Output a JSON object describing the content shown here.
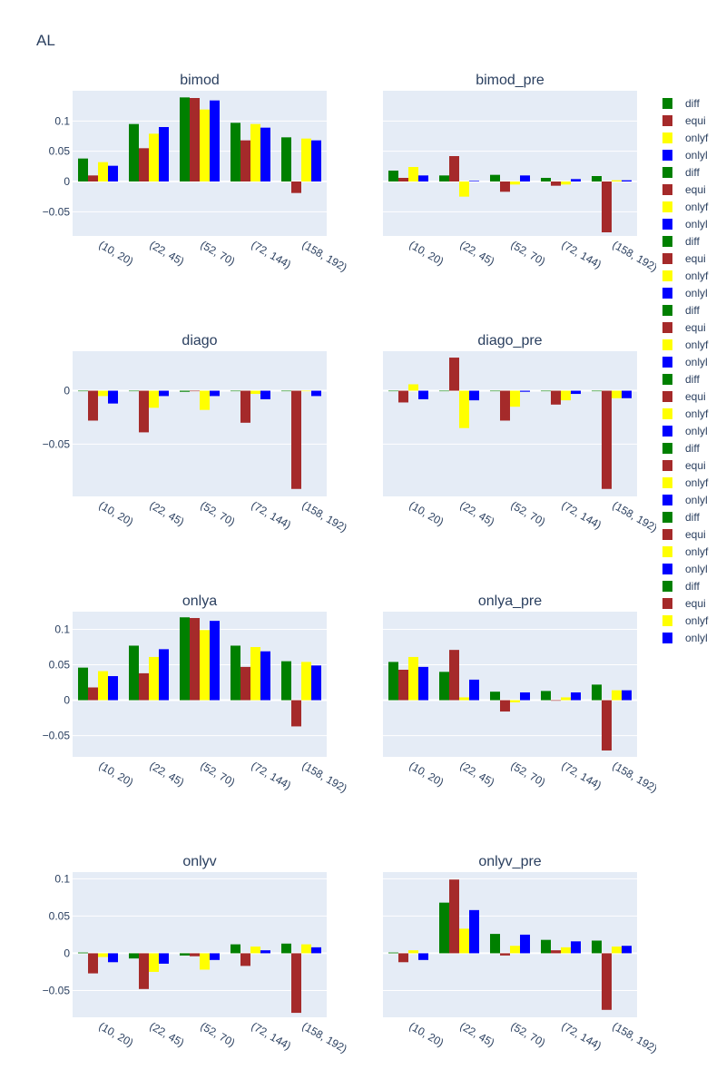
{
  "page": {
    "title": "AL"
  },
  "chart_data": {
    "type": "bar",
    "categories": [
      "(10, 20)",
      "(22, 45)",
      "(52, 70)",
      "(72, 144)",
      "(158, 192)"
    ],
    "colors": {
      "diff": "#008000",
      "equi": "#a52a2a",
      "onlyf": "#ffff00",
      "onlyl": "#0000ff"
    },
    "legend": {
      "position": "right",
      "entries": [
        {
          "label": "diff",
          "series": "diff"
        },
        {
          "label": "equi",
          "series": "equi"
        },
        {
          "label": "onlyf",
          "series": "onlyf"
        },
        {
          "label": "onlyl",
          "series": "onlyl"
        },
        {
          "label": "diff",
          "series": "diff"
        },
        {
          "label": "equi",
          "series": "equi"
        },
        {
          "label": "onlyf",
          "series": "onlyf"
        },
        {
          "label": "onlyl",
          "series": "onlyl"
        },
        {
          "label": "diff",
          "series": "diff"
        },
        {
          "label": "equi",
          "series": "equi"
        },
        {
          "label": "onlyf",
          "series": "onlyf"
        },
        {
          "label": "onlyl",
          "series": "onlyl"
        },
        {
          "label": "diff",
          "series": "diff"
        },
        {
          "label": "equi",
          "series": "equi"
        },
        {
          "label": "onlyf",
          "series": "onlyf"
        },
        {
          "label": "onlyl",
          "series": "onlyl"
        },
        {
          "label": "diff",
          "series": "diff"
        },
        {
          "label": "equi",
          "series": "equi"
        },
        {
          "label": "onlyf",
          "series": "onlyf"
        },
        {
          "label": "onlyl",
          "series": "onlyl"
        },
        {
          "label": "diff",
          "series": "diff"
        },
        {
          "label": "equi",
          "series": "equi"
        },
        {
          "label": "onlyf",
          "series": "onlyf"
        },
        {
          "label": "onlyl",
          "series": "onlyl"
        },
        {
          "label": "diff",
          "series": "diff"
        },
        {
          "label": "equi",
          "series": "equi"
        },
        {
          "label": "onlyf",
          "series": "onlyf"
        },
        {
          "label": "onlyl",
          "series": "onlyl"
        },
        {
          "label": "diff",
          "series": "diff"
        },
        {
          "label": "equi",
          "series": "equi"
        },
        {
          "label": "onlyf",
          "series": "onlyf"
        },
        {
          "label": "onlyl",
          "series": "onlyl"
        }
      ]
    },
    "subplots": [
      {
        "title": "bimod",
        "ylim": [
          -0.09,
          0.15
        ],
        "yticks": [
          {
            "v": 0.1,
            "label": "0.1"
          },
          {
            "v": 0.05,
            "label": "0.05"
          },
          {
            "v": 0,
            "label": "0"
          },
          {
            "v": -0.05,
            "label": "−0.05"
          }
        ],
        "series": [
          {
            "name": "diff",
            "values": [
              0.038,
              0.095,
              0.139,
              0.097,
              0.073
            ]
          },
          {
            "name": "equi",
            "values": [
              0.01,
              0.055,
              0.138,
              0.068,
              -0.019
            ]
          },
          {
            "name": "onlyf",
            "values": [
              0.032,
              0.079,
              0.119,
              0.095,
              0.071
            ]
          },
          {
            "name": "onlyl",
            "values": [
              0.026,
              0.09,
              0.134,
              0.089,
              0.068
            ]
          }
        ]
      },
      {
        "title": "bimod_pre",
        "ylim": [
          -0.09,
          0.15
        ],
        "yticks": [],
        "series": [
          {
            "name": "diff",
            "values": [
              0.018,
              0.01,
              0.011,
              0.006,
              0.009
            ]
          },
          {
            "name": "equi",
            "values": [
              0.006,
              0.042,
              -0.017,
              -0.007,
              -0.084
            ]
          },
          {
            "name": "onlyf",
            "values": [
              0.024,
              -0.025,
              -0.005,
              -0.005,
              0.002
            ]
          },
          {
            "name": "onlyl",
            "values": [
              0.01,
              0.001,
              0.01,
              0.004,
              0.002
            ]
          }
        ]
      },
      {
        "title": "diago",
        "ylim": [
          -0.099,
          0.037
        ],
        "yticks": [
          {
            "v": 0,
            "label": "0"
          },
          {
            "v": -0.05,
            "label": "−0.05"
          }
        ],
        "series": [
          {
            "name": "diff",
            "values": [
              0.0,
              0.0,
              -0.001,
              0.0,
              0.0
            ]
          },
          {
            "name": "equi",
            "values": [
              -0.028,
              -0.039,
              0.0,
              -0.03,
              -0.092
            ]
          },
          {
            "name": "onlyf",
            "values": [
              -0.005,
              -0.016,
              -0.018,
              -0.003,
              0.0
            ]
          },
          {
            "name": "onlyl",
            "values": [
              -0.012,
              -0.005,
              -0.005,
              -0.008,
              -0.005
            ]
          }
        ]
      },
      {
        "title": "diago_pre",
        "ylim": [
          -0.099,
          0.037
        ],
        "yticks": [],
        "series": [
          {
            "name": "diff",
            "values": [
              0.0,
              0.0,
              0.0,
              0.0,
              0.0
            ]
          },
          {
            "name": "equi",
            "values": [
              -0.011,
              0.031,
              -0.028,
              -0.013,
              -0.092
            ]
          },
          {
            "name": "onlyf",
            "values": [
              0.006,
              -0.035,
              -0.015,
              -0.009,
              -0.007
            ]
          },
          {
            "name": "onlyl",
            "values": [
              -0.008,
              -0.009,
              -0.001,
              -0.003,
              -0.007
            ]
          }
        ]
      },
      {
        "title": "onlya",
        "ylim": [
          -0.08,
          0.125
        ],
        "yticks": [
          {
            "v": 0.1,
            "label": "0.1"
          },
          {
            "v": 0.05,
            "label": "0.05"
          },
          {
            "v": 0,
            "label": "0"
          },
          {
            "v": -0.05,
            "label": "−0.05"
          }
        ],
        "series": [
          {
            "name": "diff",
            "values": [
              0.046,
              0.077,
              0.117,
              0.077,
              0.055
            ]
          },
          {
            "name": "equi",
            "values": [
              0.018,
              0.038,
              0.116,
              0.047,
              -0.037
            ]
          },
          {
            "name": "onlyf",
            "values": [
              0.041,
              0.061,
              0.099,
              0.075,
              0.054
            ]
          },
          {
            "name": "onlyl",
            "values": [
              0.034,
              0.072,
              0.112,
              0.069,
              0.049
            ]
          }
        ]
      },
      {
        "title": "onlya_pre",
        "ylim": [
          -0.08,
          0.125
        ],
        "yticks": [],
        "series": [
          {
            "name": "diff",
            "values": [
              0.054,
              0.04,
              0.012,
              0.013,
              0.022
            ]
          },
          {
            "name": "equi",
            "values": [
              0.043,
              0.071,
              -0.016,
              0.0,
              -0.071
            ]
          },
          {
            "name": "onlyf",
            "values": [
              0.061,
              0.004,
              -0.003,
              0.004,
              0.014
            ]
          },
          {
            "name": "onlyl",
            "values": [
              0.047,
              0.029,
              0.011,
              0.011,
              0.014
            ]
          }
        ]
      },
      {
        "title": "onlyv",
        "ylim": [
          -0.086,
          0.109
        ],
        "yticks": [
          {
            "v": 0.1,
            "label": "0.1"
          },
          {
            "v": 0.05,
            "label": "0.05"
          },
          {
            "v": 0,
            "label": "0"
          },
          {
            "v": -0.05,
            "label": "−0.05"
          }
        ],
        "series": [
          {
            "name": "diff",
            "values": [
              0.001,
              -0.007,
              -0.003,
              0.012,
              0.013
            ]
          },
          {
            "name": "equi",
            "values": [
              -0.027,
              -0.048,
              -0.004,
              -0.017,
              -0.08
            ]
          },
          {
            "name": "onlyf",
            "values": [
              -0.005,
              -0.025,
              -0.022,
              0.009,
              0.012
            ]
          },
          {
            "name": "onlyl",
            "values": [
              -0.012,
              -0.014,
              -0.009,
              0.004,
              0.008
            ]
          }
        ]
      },
      {
        "title": "onlyv_pre",
        "ylim": [
          -0.086,
          0.109
        ],
        "yticks": [],
        "series": [
          {
            "name": "diff",
            "values": [
              0.001,
              0.068,
              0.026,
              0.018,
              0.017
            ]
          },
          {
            "name": "equi",
            "values": [
              -0.012,
              0.099,
              -0.003,
              0.004,
              -0.076
            ]
          },
          {
            "name": "onlyf",
            "values": [
              0.004,
              0.033,
              0.01,
              0.008,
              0.009
            ]
          },
          {
            "name": "onlyl",
            "values": [
              -0.009,
              0.058,
              0.025,
              0.016,
              0.01
            ]
          }
        ]
      }
    ]
  }
}
